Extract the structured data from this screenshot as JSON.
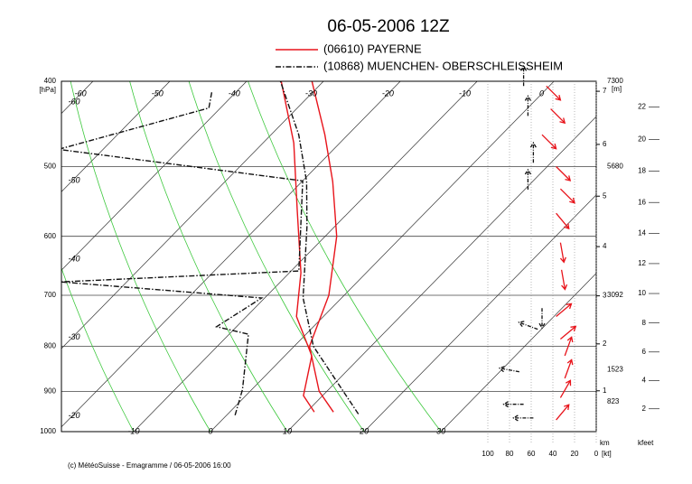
{
  "chart_data": {
    "type": "emagram",
    "title": "06-05-2006  12Z",
    "footer": "(c) MétéoSuisse - Emagramme  /  06-05-2006  16:00",
    "y_label": "[hPa]",
    "log_y": true,
    "ylim": [
      1000,
      400
    ],
    "yticks": [
      400,
      500,
      600,
      700,
      800,
      900,
      1000
    ],
    "xlim": [
      -19.4,
      50.2
    ],
    "temperature_ticks": [
      -60,
      -50,
      -40,
      -30,
      -20,
      -10,
      0,
      10,
      20,
      30
    ],
    "dry_adiabats": true,
    "wind_label": "[kt]",
    "wind_lim": [
      0,
      100
    ],
    "wind_ticks": [
      100,
      80,
      60,
      40,
      20,
      0
    ],
    "height_label": "[m]",
    "geopotential": {
      "pressure": [
        400,
        500,
        700,
        850,
        925
      ],
      "values": [
        7300,
        5680,
        3092,
        1523,
        823
      ]
    },
    "km_label": "km",
    "km_ticks": [
      1,
      2,
      3,
      4,
      5,
      6,
      7
    ],
    "kfeet_label": "kfeet",
    "kfeet_ticks": [
      2,
      4,
      6,
      8,
      10,
      12,
      14,
      16,
      18,
      20,
      22
    ],
    "series": [
      {
        "name": "(06610)  PAYERNE",
        "color": "#e8141b",
        "line_style": "solid",
        "temperature": {
          "pressure": [
            950,
            900,
            800,
            700,
            600,
            520,
            460,
            400
          ],
          "values": [
            13.5,
            9,
            2,
            -2,
            -8.5,
            -16,
            -23,
            -31.5
          ]
        },
        "dewpoint": {
          "pressure": [
            950,
            910,
            820,
            740,
            660,
            560,
            470,
            400
          ],
          "values": [
            11,
            7.5,
            3.5,
            -3.5,
            -8.5,
            -17,
            -26,
            -35.5
          ]
        },
        "wind": {
          "pressure": [
            405,
            430,
            460,
            500,
            530,
            565,
            610,
            655,
            740,
            785,
            820,
            870,
            915,
            970
          ],
          "speed": [
            46,
            42,
            50,
            37,
            33,
            37,
            33,
            32,
            37,
            33,
            29,
            29,
            33,
            37
          ],
          "direction": [
            315,
            315,
            315,
            315,
            315,
            320,
            350,
            350,
            230,
            230,
            200,
            200,
            210,
            220
          ]
        }
      },
      {
        "name": "(10868)  MUENCHEN- OBERSCHLEISSHEIM",
        "color": "#111111",
        "line_style": "dash-dot",
        "temperature": {
          "pressure": [
            955,
            800,
            705,
            585,
            520,
            460,
            400
          ],
          "values": [
            17,
            2.5,
            -5,
            -13.6,
            -19.4,
            -26.4,
            -35.6
          ]
        },
        "dewpoint": {
          "pressure": [
            958,
            896,
            775,
            760,
            705,
            676,
            657,
            519,
            478,
            429,
            410
          ],
          "values": [
            1.1,
            -1.2,
            -7.5,
            -12.6,
            -10.4,
            -38.6,
            -9,
            -20,
            -55.8,
            -41.5,
            -43.3
          ]
        },
        "wind": {
          "pressure": [
            405,
            438,
            495,
            531,
            724,
            765,
            855,
            931,
            965
          ],
          "speed": [
            67,
            63,
            58,
            63,
            50,
            54,
            71,
            67,
            58
          ],
          "direction": [
            180,
            180,
            180,
            180,
            0,
            110,
            100,
            90,
            90
          ]
        }
      }
    ]
  }
}
